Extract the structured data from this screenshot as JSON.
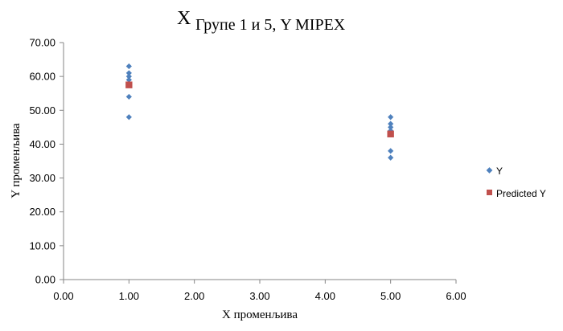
{
  "chart_data": {
    "type": "scatter",
    "title_main": "Групе 1 и 5, Y MIPEX",
    "title_prefix": "X",
    "xlabel": "X променљива",
    "ylabel": "Y променљива",
    "xlim": [
      0,
      6
    ],
    "ylim": [
      0,
      70
    ],
    "x_ticks": [
      "0.00",
      "1.00",
      "2.00",
      "3.00",
      "4.00",
      "5.00",
      "6.00"
    ],
    "y_ticks": [
      "0.00",
      "10.00",
      "20.00",
      "30.00",
      "40.00",
      "50.00",
      "60.00",
      "70.00"
    ],
    "grid": false,
    "legend_position": "right",
    "series": [
      {
        "name": "Y",
        "marker": "diamond",
        "color": "#4f81bd",
        "points": [
          {
            "x": 1,
            "y": 63
          },
          {
            "x": 1,
            "y": 61
          },
          {
            "x": 1,
            "y": 60
          },
          {
            "x": 1,
            "y": 59
          },
          {
            "x": 1,
            "y": 58
          },
          {
            "x": 1,
            "y": 54
          },
          {
            "x": 1,
            "y": 48
          },
          {
            "x": 5,
            "y": 48
          },
          {
            "x": 5,
            "y": 46
          },
          {
            "x": 5,
            "y": 45
          },
          {
            "x": 5,
            "y": 44
          },
          {
            "x": 5,
            "y": 38
          },
          {
            "x": 5,
            "y": 36
          }
        ]
      },
      {
        "name": "Predicted Y",
        "marker": "square",
        "color": "#c0504d",
        "points": [
          {
            "x": 1,
            "y": 57.5
          },
          {
            "x": 5,
            "y": 43
          }
        ]
      }
    ]
  }
}
